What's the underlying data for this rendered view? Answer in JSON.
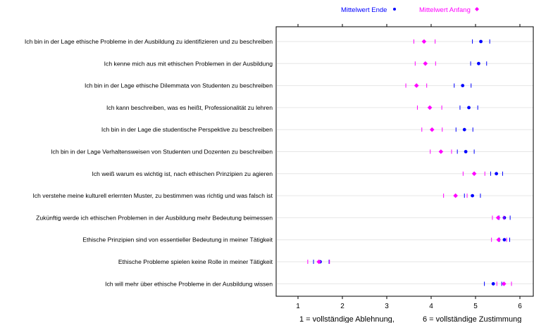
{
  "chart_data": {
    "type": "scatter",
    "legend": {
      "placement": "top-center",
      "entries": [
        {
          "label": "Mittelwert Ende",
          "color": "#0000ff",
          "marker": "circle"
        },
        {
          "label": "Mittelwert Anfang",
          "color": "#ff00ff",
          "marker": "diamond"
        }
      ]
    },
    "xlim": [
      0.45,
      6.3
    ],
    "x_ticks": [
      "1",
      "2",
      "3",
      "4",
      "5",
      "6"
    ],
    "x_tick_values": [
      1,
      2,
      3,
      4,
      5,
      6
    ],
    "footer": {
      "left": "1 = vollständige Ablehnung,",
      "right": "6 = vollständige Zustimmung"
    },
    "grid": "horizontal",
    "categories": [
      "Ich bin in der Lage ethische Probleme in der Ausbildung zu identifizieren und zu beschreiben",
      "Ich kenne mich aus mit ethischen Problemen in der Ausbildung",
      "Ich bin in der Lage ethische Dilemmata von Studenten zu beschreiben",
      "Ich kann beschreiben, was es heißt, Professionalität zu lehren",
      "Ich bin in der Lage die studentische Perspektive zu beschreiben",
      "Ich bin in der Lage Verhaltensweisen von Studenten und Dozenten zu beschreiben",
      "Ich weiß warum es wichtig ist, nach ethischen Prinzipien zu agieren",
      "Ich verstehe meine kulturell erlernten Muster, zu bestimmen was richtig und was falsch ist",
      "Zukünftig werde ich ethischen Problemen in der Ausbildung mehr Bedeutung beimessen",
      "Ethische Prinzipien sind von essentieller Bedeutung in meiner Tätigkeit",
      "Ethische Probleme spielen keine Rolle in meiner Tätigkeit",
      "Ich will mehr über ethische Probleme in der Ausbildung wissen"
    ],
    "series": [
      {
        "name": "Mittelwert Ende",
        "color": "#0000ff",
        "marker": "circle",
        "values": [
          5.12,
          5.07,
          4.71,
          4.85,
          4.75,
          4.78,
          5.47,
          4.93,
          5.65,
          5.65,
          1.5,
          5.4
        ],
        "ci_low": [
          4.93,
          4.89,
          4.52,
          4.65,
          4.56,
          4.59,
          5.34,
          4.75,
          5.53,
          5.54,
          1.35,
          5.2
        ],
        "ci_high": [
          5.32,
          5.25,
          4.9,
          5.05,
          4.94,
          4.97,
          5.61,
          5.11,
          5.78,
          5.77,
          1.7,
          5.59
        ]
      },
      {
        "name": "Mittelwert Anfang",
        "color": "#ff00ff",
        "marker": "diamond",
        "values": [
          3.84,
          3.87,
          3.67,
          3.97,
          4.02,
          4.22,
          4.97,
          4.55,
          5.51,
          5.52,
          1.47,
          5.64
        ],
        "ci_low": [
          3.61,
          3.64,
          3.43,
          3.69,
          3.79,
          3.98,
          4.72,
          4.28,
          5.38,
          5.36,
          1.22,
          5.48
        ],
        "ci_high": [
          4.09,
          4.1,
          3.9,
          4.24,
          4.25,
          4.46,
          5.21,
          4.81,
          5.64,
          5.7,
          1.71,
          5.81
        ]
      }
    ]
  }
}
